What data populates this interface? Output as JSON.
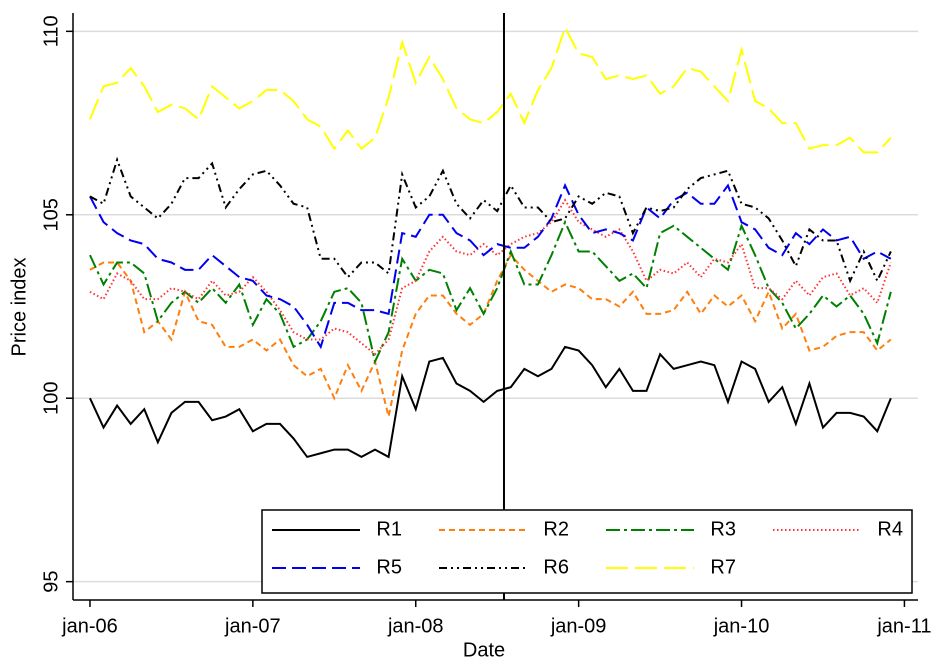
{
  "chart_data": {
    "type": "line",
    "x_label": "Date",
    "y_label": "Price index",
    "x": [
      0,
      1,
      2,
      3,
      4,
      5,
      6,
      7,
      8,
      9,
      10,
      11,
      12,
      13,
      14,
      15,
      16,
      17,
      18,
      19,
      20,
      21,
      22,
      23,
      24,
      25,
      26,
      27,
      28,
      29,
      30,
      31,
      32,
      33,
      34,
      35,
      36,
      37,
      38,
      39,
      40,
      41,
      42,
      43,
      44,
      45,
      46,
      47,
      48,
      49,
      50,
      51,
      52,
      53,
      54,
      55,
      56,
      57,
      58,
      59
    ],
    "xlim": [
      -1.25,
      61
    ],
    "ylim": [
      94.5,
      110.5
    ],
    "xticks": [
      {
        "value": 0,
        "label": "jan-06"
      },
      {
        "value": 12,
        "label": "jan-07"
      },
      {
        "value": 24,
        "label": "jan-08"
      },
      {
        "value": 36,
        "label": "jan-09"
      },
      {
        "value": 48,
        "label": "jan-10"
      },
      {
        "value": 60,
        "label": "jan-11"
      }
    ],
    "yticks": [
      95,
      100,
      105,
      110
    ],
    "grid": true,
    "legend": "bottom-right",
    "vline": 30.5,
    "series": [
      {
        "name": "R1",
        "color": "#000000",
        "values": [
          100.0,
          99.2,
          99.8,
          99.3,
          99.7,
          98.8,
          99.6,
          99.9,
          99.9,
          99.4,
          99.5,
          99.7,
          99.1,
          99.3,
          99.3,
          98.9,
          98.4,
          98.5,
          98.6,
          98.6,
          98.4,
          98.6,
          98.4,
          100.6,
          99.7,
          101.0,
          101.1,
          100.4,
          100.2,
          99.9,
          100.2,
          100.3,
          100.8,
          100.6,
          100.8,
          101.4,
          101.3,
          100.9,
          100.3,
          100.8,
          100.2,
          100.2,
          101.2,
          100.8,
          100.9,
          101.0,
          100.9,
          99.9,
          101.0,
          100.8,
          99.9,
          100.3,
          99.3,
          100.4,
          99.2,
          99.6,
          99.6,
          99.5,
          99.1,
          100.0
        ]
      },
      {
        "name": "R2",
        "color": "#ff7f0e",
        "values": [
          103.5,
          103.7,
          103.7,
          103.2,
          101.8,
          102.1,
          101.6,
          102.9,
          102.1,
          102.0,
          101.4,
          101.4,
          101.6,
          101.3,
          101.6,
          100.9,
          100.6,
          100.8,
          100.0,
          100.9,
          100.2,
          101.0,
          99.5,
          101.3,
          102.3,
          102.8,
          102.8,
          102.3,
          102.0,
          102.3,
          103.2,
          103.9,
          103.5,
          103.2,
          102.9,
          103.1,
          103.0,
          102.7,
          102.7,
          102.5,
          102.9,
          102.3,
          102.3,
          102.4,
          102.9,
          102.3,
          102.8,
          102.5,
          102.8,
          102.1,
          102.9,
          101.9,
          102.3,
          101.3,
          101.4,
          101.7,
          101.8,
          101.8,
          101.3,
          101.6
        ]
      },
      {
        "name": "R3",
        "color": "#008000",
        "values": [
          103.9,
          103.1,
          103.7,
          103.7,
          103.4,
          102.1,
          102.6,
          102.9,
          102.6,
          103.0,
          102.6,
          103.1,
          102.0,
          102.7,
          102.3,
          101.4,
          101.6,
          102.1,
          102.9,
          103.0,
          102.6,
          101.0,
          101.8,
          103.8,
          103.2,
          103.5,
          103.4,
          102.4,
          103.0,
          102.3,
          103.0,
          104.0,
          103.1,
          103.1,
          103.9,
          104.8,
          104.0,
          104.0,
          103.6,
          103.2,
          103.4,
          103.0,
          104.5,
          104.7,
          104.4,
          104.1,
          103.8,
          103.5,
          104.7,
          103.9,
          103.0,
          102.6,
          101.9,
          102.3,
          102.8,
          102.5,
          102.8,
          102.3,
          101.5,
          102.9
        ]
      },
      {
        "name": "R4",
        "color": "#ff3333",
        "values": [
          102.9,
          102.7,
          103.4,
          103.2,
          102.7,
          102.7,
          103.0,
          102.9,
          102.7,
          103.2,
          102.8,
          102.9,
          103.3,
          102.9,
          102.4,
          101.8,
          101.6,
          101.6,
          101.9,
          101.8,
          101.5,
          101.2,
          101.6,
          103.0,
          103.2,
          104.0,
          104.4,
          104.0,
          103.9,
          104.2,
          103.9,
          104.2,
          104.4,
          104.5,
          104.8,
          105.4,
          104.8,
          104.6,
          104.4,
          104.6,
          104.0,
          103.2,
          103.5,
          103.4,
          103.7,
          103.3,
          103.8,
          103.7,
          104.2,
          103.0,
          103.0,
          102.7,
          103.2,
          102.8,
          103.3,
          103.4,
          102.8,
          103.0,
          102.6,
          103.7
        ]
      },
      {
        "name": "R5",
        "color": "#0000ee",
        "values": [
          105.5,
          104.8,
          104.5,
          104.3,
          104.2,
          103.8,
          103.7,
          103.5,
          103.5,
          103.9,
          103.6,
          103.3,
          103.2,
          102.8,
          102.7,
          102.5,
          102.0,
          101.4,
          102.6,
          102.6,
          102.4,
          102.4,
          102.3,
          104.5,
          104.4,
          105.0,
          105.0,
          104.5,
          104.3,
          103.9,
          104.2,
          104.1,
          104.1,
          104.4,
          104.9,
          105.8,
          105.0,
          104.5,
          104.6,
          104.5,
          104.3,
          105.2,
          104.9,
          105.4,
          105.6,
          105.3,
          105.3,
          105.8,
          104.8,
          104.6,
          104.1,
          103.9,
          104.5,
          104.2,
          104.6,
          104.3,
          104.4,
          103.8,
          104.0,
          103.8
        ]
      },
      {
        "name": "R6",
        "color": "#000000",
        "values": [
          105.5,
          105.3,
          106.5,
          105.5,
          105.2,
          104.9,
          105.3,
          106.0,
          106.0,
          106.4,
          105.2,
          105.7,
          106.1,
          106.2,
          105.8,
          105.3,
          105.2,
          103.8,
          103.8,
          103.3,
          103.7,
          103.7,
          103.4,
          106.1,
          105.2,
          105.5,
          106.2,
          105.3,
          104.9,
          105.4,
          105.1,
          105.8,
          105.2,
          105.2,
          104.8,
          104.9,
          105.5,
          105.3,
          105.6,
          105.5,
          104.5,
          105.2,
          105.1,
          105.2,
          105.7,
          106.0,
          106.1,
          106.2,
          105.3,
          105.2,
          104.9,
          104.3,
          103.6,
          104.6,
          104.3,
          104.3,
          103.2,
          104.0,
          103.2,
          104.0
        ]
      },
      {
        "name": "R7",
        "color": "#ffff00",
        "values": [
          107.6,
          108.5,
          108.6,
          109.0,
          108.5,
          107.8,
          108.0,
          107.9,
          107.6,
          108.5,
          108.2,
          107.9,
          108.1,
          108.4,
          108.4,
          108.1,
          107.6,
          107.4,
          106.8,
          107.3,
          106.8,
          107.1,
          108.2,
          109.7,
          108.6,
          109.3,
          108.7,
          107.9,
          107.6,
          107.5,
          107.8,
          108.3,
          107.5,
          108.4,
          109.0,
          110.1,
          109.4,
          109.3,
          108.7,
          108.8,
          108.7,
          108.8,
          108.3,
          108.5,
          109.0,
          108.9,
          108.5,
          108.1,
          109.5,
          108.1,
          107.9,
          107.5,
          107.5,
          106.8,
          106.9,
          106.9,
          107.1,
          106.7,
          106.7,
          107.1
        ]
      }
    ]
  }
}
